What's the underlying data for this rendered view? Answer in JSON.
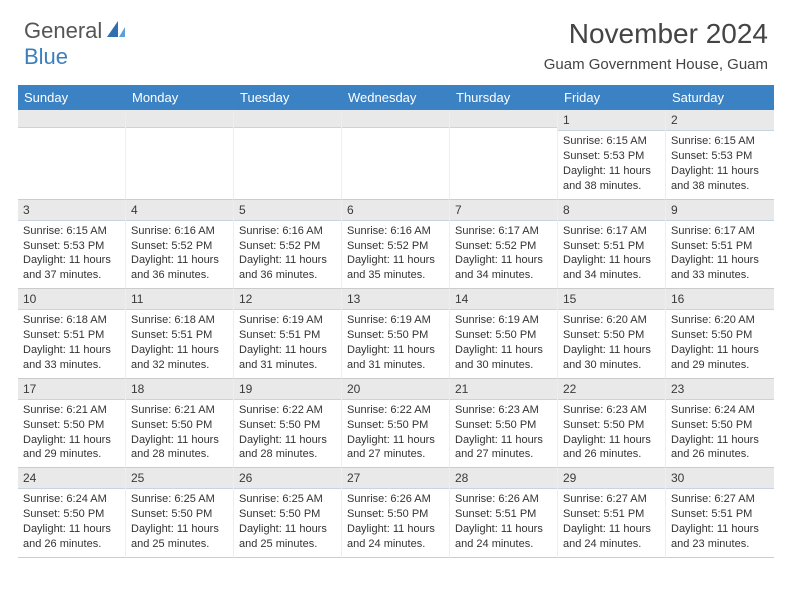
{
  "brand": {
    "text1": "General",
    "text2": "Blue"
  },
  "title": "November 2024",
  "location": "Guam Government House, Guam",
  "day_headers": [
    "Sunday",
    "Monday",
    "Tuesday",
    "Wednesday",
    "Thursday",
    "Friday",
    "Saturday"
  ],
  "colors": {
    "header_bg": "#3b82c4",
    "header_text": "#ffffff",
    "daynum_bg": "#e9e9e9",
    "brand_blue": "#3b7fbf"
  },
  "weeks": [
    [
      {
        "n": "",
        "sr": "",
        "ss": "",
        "dl": ""
      },
      {
        "n": "",
        "sr": "",
        "ss": "",
        "dl": ""
      },
      {
        "n": "",
        "sr": "",
        "ss": "",
        "dl": ""
      },
      {
        "n": "",
        "sr": "",
        "ss": "",
        "dl": ""
      },
      {
        "n": "",
        "sr": "",
        "ss": "",
        "dl": ""
      },
      {
        "n": "1",
        "sr": "Sunrise: 6:15 AM",
        "ss": "Sunset: 5:53 PM",
        "dl": "Daylight: 11 hours and 38 minutes."
      },
      {
        "n": "2",
        "sr": "Sunrise: 6:15 AM",
        "ss": "Sunset: 5:53 PM",
        "dl": "Daylight: 11 hours and 38 minutes."
      }
    ],
    [
      {
        "n": "3",
        "sr": "Sunrise: 6:15 AM",
        "ss": "Sunset: 5:53 PM",
        "dl": "Daylight: 11 hours and 37 minutes."
      },
      {
        "n": "4",
        "sr": "Sunrise: 6:16 AM",
        "ss": "Sunset: 5:52 PM",
        "dl": "Daylight: 11 hours and 36 minutes."
      },
      {
        "n": "5",
        "sr": "Sunrise: 6:16 AM",
        "ss": "Sunset: 5:52 PM",
        "dl": "Daylight: 11 hours and 36 minutes."
      },
      {
        "n": "6",
        "sr": "Sunrise: 6:16 AM",
        "ss": "Sunset: 5:52 PM",
        "dl": "Daylight: 11 hours and 35 minutes."
      },
      {
        "n": "7",
        "sr": "Sunrise: 6:17 AM",
        "ss": "Sunset: 5:52 PM",
        "dl": "Daylight: 11 hours and 34 minutes."
      },
      {
        "n": "8",
        "sr": "Sunrise: 6:17 AM",
        "ss": "Sunset: 5:51 PM",
        "dl": "Daylight: 11 hours and 34 minutes."
      },
      {
        "n": "9",
        "sr": "Sunrise: 6:17 AM",
        "ss": "Sunset: 5:51 PM",
        "dl": "Daylight: 11 hours and 33 minutes."
      }
    ],
    [
      {
        "n": "10",
        "sr": "Sunrise: 6:18 AM",
        "ss": "Sunset: 5:51 PM",
        "dl": "Daylight: 11 hours and 33 minutes."
      },
      {
        "n": "11",
        "sr": "Sunrise: 6:18 AM",
        "ss": "Sunset: 5:51 PM",
        "dl": "Daylight: 11 hours and 32 minutes."
      },
      {
        "n": "12",
        "sr": "Sunrise: 6:19 AM",
        "ss": "Sunset: 5:51 PM",
        "dl": "Daylight: 11 hours and 31 minutes."
      },
      {
        "n": "13",
        "sr": "Sunrise: 6:19 AM",
        "ss": "Sunset: 5:50 PM",
        "dl": "Daylight: 11 hours and 31 minutes."
      },
      {
        "n": "14",
        "sr": "Sunrise: 6:19 AM",
        "ss": "Sunset: 5:50 PM",
        "dl": "Daylight: 11 hours and 30 minutes."
      },
      {
        "n": "15",
        "sr": "Sunrise: 6:20 AM",
        "ss": "Sunset: 5:50 PM",
        "dl": "Daylight: 11 hours and 30 minutes."
      },
      {
        "n": "16",
        "sr": "Sunrise: 6:20 AM",
        "ss": "Sunset: 5:50 PM",
        "dl": "Daylight: 11 hours and 29 minutes."
      }
    ],
    [
      {
        "n": "17",
        "sr": "Sunrise: 6:21 AM",
        "ss": "Sunset: 5:50 PM",
        "dl": "Daylight: 11 hours and 29 minutes."
      },
      {
        "n": "18",
        "sr": "Sunrise: 6:21 AM",
        "ss": "Sunset: 5:50 PM",
        "dl": "Daylight: 11 hours and 28 minutes."
      },
      {
        "n": "19",
        "sr": "Sunrise: 6:22 AM",
        "ss": "Sunset: 5:50 PM",
        "dl": "Daylight: 11 hours and 28 minutes."
      },
      {
        "n": "20",
        "sr": "Sunrise: 6:22 AM",
        "ss": "Sunset: 5:50 PM",
        "dl": "Daylight: 11 hours and 27 minutes."
      },
      {
        "n": "21",
        "sr": "Sunrise: 6:23 AM",
        "ss": "Sunset: 5:50 PM",
        "dl": "Daylight: 11 hours and 27 minutes."
      },
      {
        "n": "22",
        "sr": "Sunrise: 6:23 AM",
        "ss": "Sunset: 5:50 PM",
        "dl": "Daylight: 11 hours and 26 minutes."
      },
      {
        "n": "23",
        "sr": "Sunrise: 6:24 AM",
        "ss": "Sunset: 5:50 PM",
        "dl": "Daylight: 11 hours and 26 minutes."
      }
    ],
    [
      {
        "n": "24",
        "sr": "Sunrise: 6:24 AM",
        "ss": "Sunset: 5:50 PM",
        "dl": "Daylight: 11 hours and 26 minutes."
      },
      {
        "n": "25",
        "sr": "Sunrise: 6:25 AM",
        "ss": "Sunset: 5:50 PM",
        "dl": "Daylight: 11 hours and 25 minutes."
      },
      {
        "n": "26",
        "sr": "Sunrise: 6:25 AM",
        "ss": "Sunset: 5:50 PM",
        "dl": "Daylight: 11 hours and 25 minutes."
      },
      {
        "n": "27",
        "sr": "Sunrise: 6:26 AM",
        "ss": "Sunset: 5:50 PM",
        "dl": "Daylight: 11 hours and 24 minutes."
      },
      {
        "n": "28",
        "sr": "Sunrise: 6:26 AM",
        "ss": "Sunset: 5:51 PM",
        "dl": "Daylight: 11 hours and 24 minutes."
      },
      {
        "n": "29",
        "sr": "Sunrise: 6:27 AM",
        "ss": "Sunset: 5:51 PM",
        "dl": "Daylight: 11 hours and 24 minutes."
      },
      {
        "n": "30",
        "sr": "Sunrise: 6:27 AM",
        "ss": "Sunset: 5:51 PM",
        "dl": "Daylight: 11 hours and 23 minutes."
      }
    ]
  ]
}
